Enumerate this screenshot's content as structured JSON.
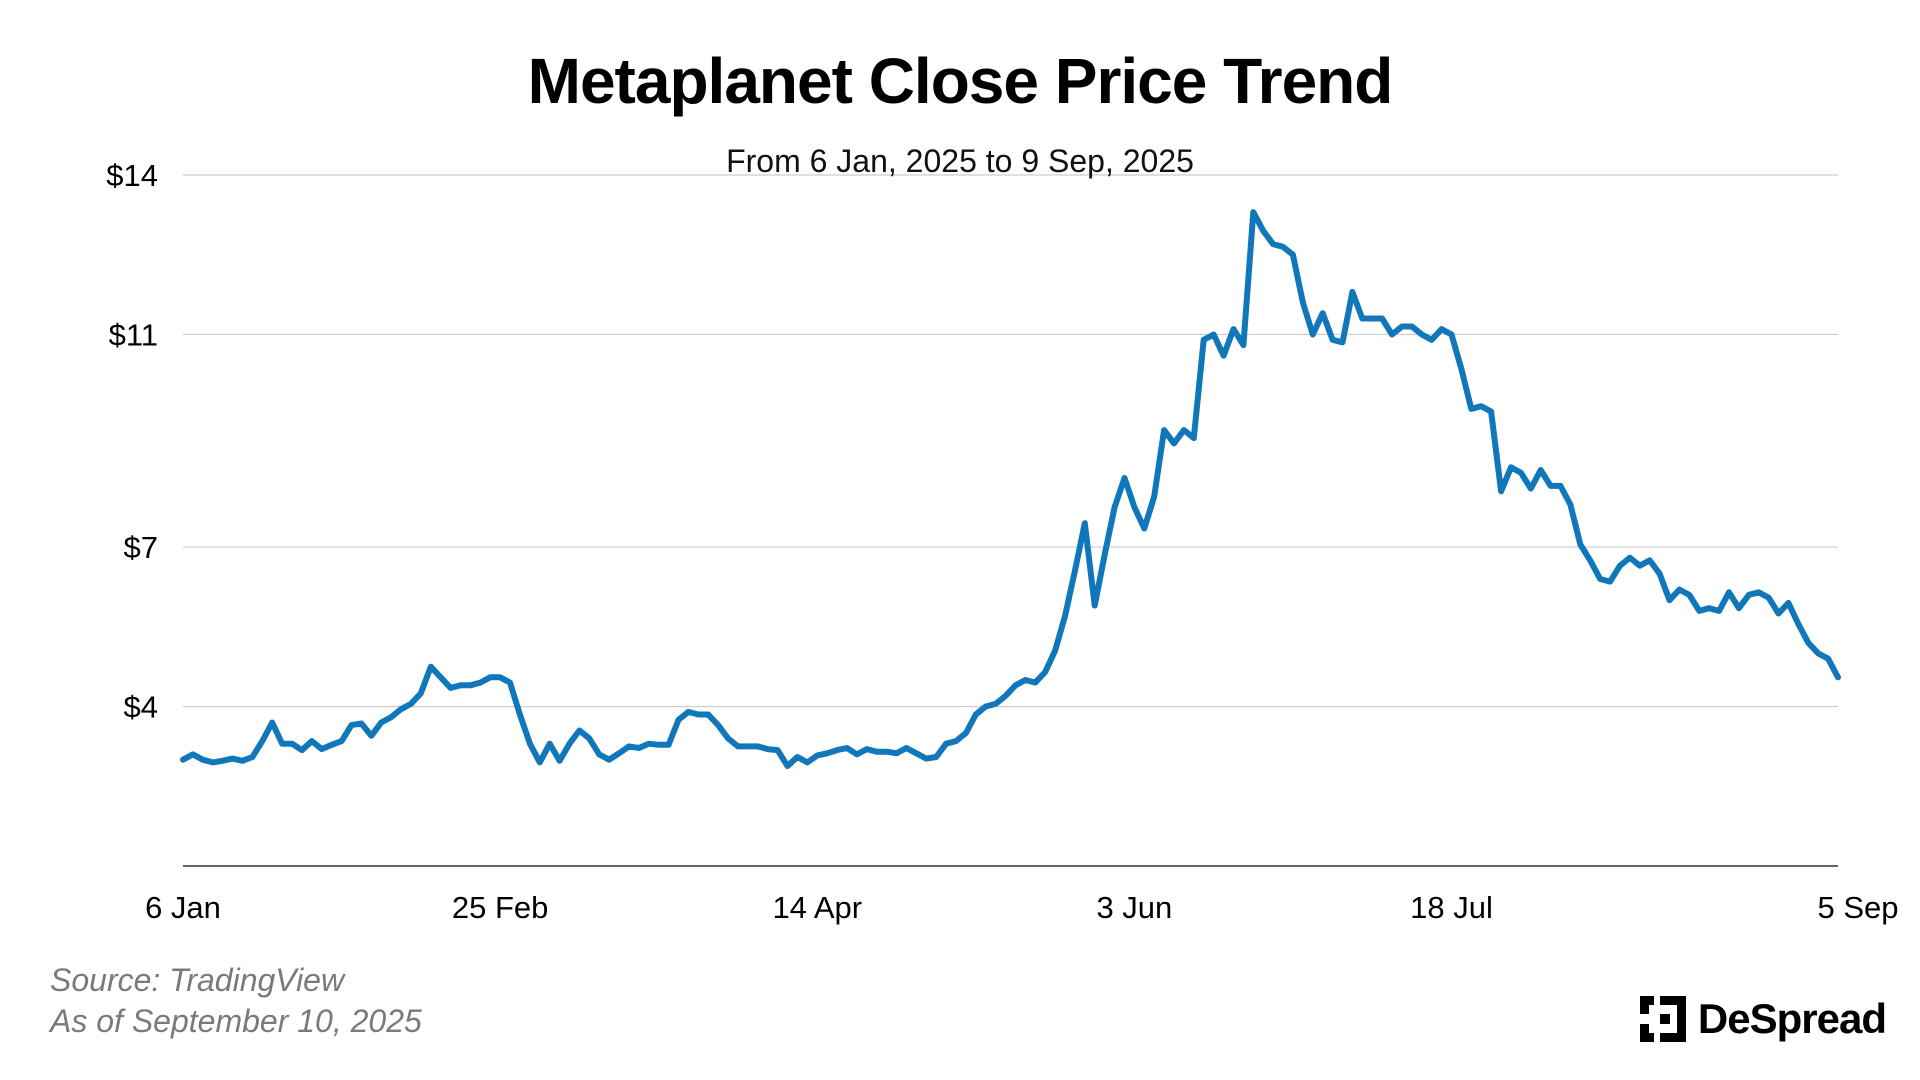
{
  "header": {
    "title": "Metaplanet Close Price Trend",
    "subtitle": "From 6 Jan, 2025 to 9 Sep, 2025"
  },
  "footer": {
    "source": "Source: TradingView",
    "as_of": "As of September 10, 2025",
    "brand": "DeSpread",
    "brand_icon": "despread-logo-icon"
  },
  "colors": {
    "line": "#1177bb",
    "grid": "#cccccc",
    "axis": "#333333",
    "text": "#000000",
    "footnote": "#7a7a7a"
  },
  "chart_data": {
    "type": "line",
    "title": "Metaplanet Close Price Trend",
    "subtitle": "From 6 Jan, 2025 to 9 Sep, 2025",
    "xlabel": "",
    "ylabel": "",
    "x_ticks": [
      "6 Jan",
      "25 Feb",
      "14 Apr",
      "3 Jun",
      "18 Jul",
      "5 Sep"
    ],
    "x_tick_index": [
      0,
      32,
      64,
      96,
      128,
      160
    ],
    "y_ticks": [
      4,
      7,
      11,
      14
    ],
    "y_tick_labels": [
      "$4",
      "$7",
      "$11",
      "$14"
    ],
    "ylim": [
      1,
      14
    ],
    "grid": "horizontal",
    "legend": "none",
    "series": [
      {
        "values": [
          3.0,
          3.1,
          3.0,
          2.95,
          2.98,
          3.02,
          2.98,
          3.05,
          3.35,
          3.7,
          3.3,
          3.3,
          3.18,
          3.35,
          3.2,
          3.28,
          3.35,
          3.65,
          3.68,
          3.45,
          3.7,
          3.8,
          3.95,
          4.05,
          4.25,
          4.75,
          4.55,
          4.35,
          4.4,
          4.4,
          4.45,
          4.55,
          4.55,
          4.45,
          3.85,
          3.3,
          2.95,
          3.3,
          2.98,
          3.3,
          3.55,
          3.4,
          3.1,
          3.0,
          3.12,
          3.25,
          3.22,
          3.3,
          3.28,
          3.28,
          3.75,
          3.9,
          3.85,
          3.85,
          3.65,
          3.4,
          3.25,
          3.25,
          3.25,
          3.2,
          3.18,
          2.88,
          3.05,
          2.95,
          3.08,
          3.12,
          3.18,
          3.22,
          3.1,
          3.2,
          3.15,
          3.15,
          3.12,
          3.22,
          3.12,
          3.02,
          3.05,
          3.3,
          3.35,
          3.5,
          3.85,
          4.0,
          4.05,
          4.2,
          4.4,
          4.5,
          4.45,
          4.65,
          5.05,
          5.7,
          6.55,
          7.45,
          5.9,
          6.85,
          7.75,
          8.3,
          7.75,
          7.35,
          7.95,
          9.2,
          8.95,
          9.2,
          9.05,
          10.9,
          11.0,
          10.6,
          11.1,
          10.8,
          13.3,
          12.95,
          12.7,
          12.65,
          12.5,
          11.6,
          11.0,
          11.4,
          10.9,
          10.85,
          11.8,
          11.3,
          11.3,
          11.3,
          11.0,
          11.15,
          11.15,
          11.0,
          10.9,
          11.1,
          11.0,
          10.35,
          9.6,
          9.65,
          9.55,
          8.05,
          8.5,
          8.4,
          8.1,
          8.45,
          8.15,
          8.15,
          7.8,
          7.05,
          6.75,
          6.4,
          6.35,
          6.65,
          6.8,
          6.65,
          6.75,
          6.5,
          6.0,
          6.2,
          6.1,
          5.8,
          5.85,
          5.8,
          6.15,
          5.85,
          6.1,
          6.15,
          6.05,
          5.75,
          5.95,
          5.55,
          5.2,
          5.0,
          4.9,
          4.55
        ]
      }
    ]
  }
}
